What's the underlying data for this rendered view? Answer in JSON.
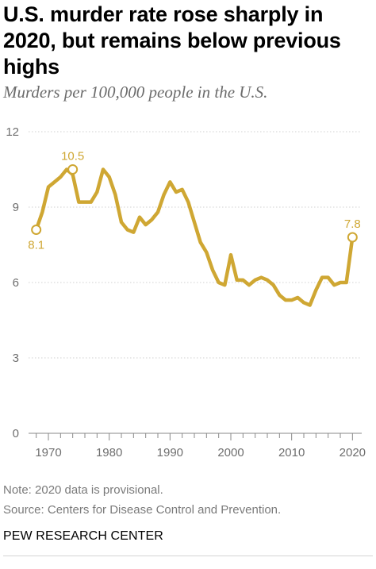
{
  "title": "U.S. murder rate rose sharply in 2020, but remains below previous highs",
  "subtitle": "Murders per 100,000 people in the U.S.",
  "note": "Note: 2020 data is provisional.",
  "source": "Source: Centers for Disease Control and Prevention.",
  "brand": "PEW RESEARCH CENTER",
  "colors": {
    "line": "#cfa733",
    "gridline": "#d0d0d0",
    "axis": "#888888"
  },
  "chart_data": {
    "type": "line",
    "title": "U.S. murder rate rose sharply in 2020, but remains below previous highs",
    "ylabel": "Murders per 100,000 people in the U.S.",
    "xlabel": "",
    "xlim": [
      1967,
      2021
    ],
    "ylim": [
      0,
      12
    ],
    "yticks": [
      0,
      3,
      6,
      9,
      12
    ],
    "xticks": [
      1970,
      1980,
      1990,
      2000,
      2010,
      2020
    ],
    "xtick_labels": [
      "1970",
      "1980",
      "1990",
      "2000",
      "2010",
      "2020"
    ],
    "grid": "horizontal dotted",
    "legend": "none",
    "series": [
      {
        "x": [
          1968,
          1969,
          1970,
          1971,
          1972,
          1973,
          1974,
          1975,
          1976,
          1977,
          1978,
          1979,
          1980,
          1981,
          1982,
          1983,
          1984,
          1985,
          1986,
          1987,
          1988,
          1989,
          1990,
          1991,
          1992,
          1993,
          1994,
          1995,
          1996,
          1997,
          1998,
          1999,
          2000,
          2001,
          2002,
          2003,
          2004,
          2005,
          2006,
          2007,
          2008,
          2009,
          2010,
          2011,
          2012,
          2013,
          2014,
          2015,
          2016,
          2017,
          2018,
          2019,
          2020
        ],
        "values": [
          8.1,
          8.8,
          9.8,
          10.0,
          10.2,
          10.5,
          10.3,
          9.2,
          9.2,
          9.2,
          9.6,
          10.5,
          10.2,
          9.5,
          8.4,
          8.1,
          8.0,
          8.6,
          8.3,
          8.5,
          8.8,
          9.5,
          10.0,
          9.6,
          9.7,
          9.2,
          8.4,
          7.6,
          7.2,
          6.5,
          6.0,
          5.9,
          7.1,
          6.1,
          6.1,
          5.9,
          6.1,
          6.2,
          6.1,
          5.9,
          5.5,
          5.3,
          5.3,
          5.4,
          5.2,
          5.1,
          5.7,
          6.2,
          6.2,
          5.9,
          6.0,
          6.0,
          7.8
        ]
      }
    ],
    "annotations": [
      {
        "x": 1968,
        "y": 8.1,
        "label": "8.1",
        "position": "below"
      },
      {
        "x": 1974,
        "y": 10.5,
        "label": "10.5",
        "position": "above"
      },
      {
        "x": 2020,
        "y": 7.8,
        "label": "7.8",
        "position": "above"
      }
    ]
  }
}
